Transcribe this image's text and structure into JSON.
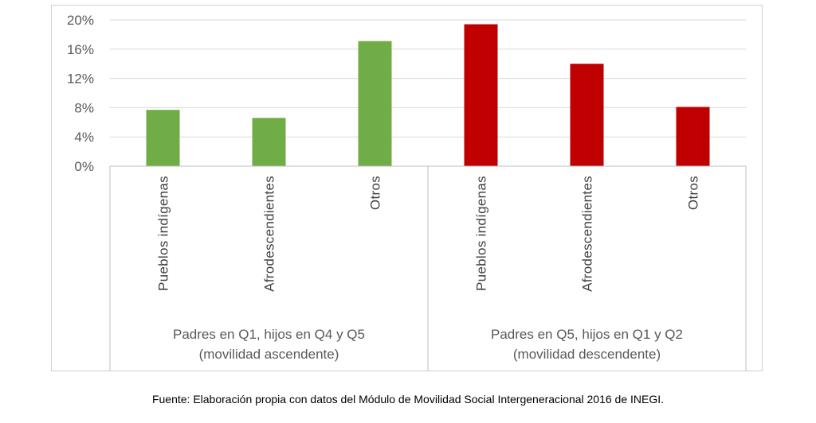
{
  "chart_data": {
    "type": "bar",
    "yticks": [
      "20%",
      "16%",
      "12%",
      "8%",
      "4%",
      "0%"
    ],
    "ylim": [
      0,
      20
    ],
    "grid": true,
    "groups": [
      {
        "label_line1": "Padres en Q1, hijos en Q4 y Q5",
        "label_line2": "(movilidad ascendente)",
        "color": "#70ad47",
        "categories": [
          "Pueblos indígenas",
          "Afrodescendientes",
          "Otros"
        ],
        "values": [
          7.7,
          6.6,
          17.1
        ]
      },
      {
        "label_line1": "Padres en Q5, hijos en Q1 y Q2",
        "label_line2": "(movilidad descendente)",
        "color": "#c00000",
        "categories": [
          "Pueblos indígenas",
          "Afrodescendientes",
          "Otros"
        ],
        "values": [
          19.4,
          14.0,
          8.1
        ]
      }
    ]
  },
  "footer": {
    "source": "Fuente: Elaboración propia con datos del Módulo de Movilidad Social Intergeneracional 2016 de INEGI."
  }
}
